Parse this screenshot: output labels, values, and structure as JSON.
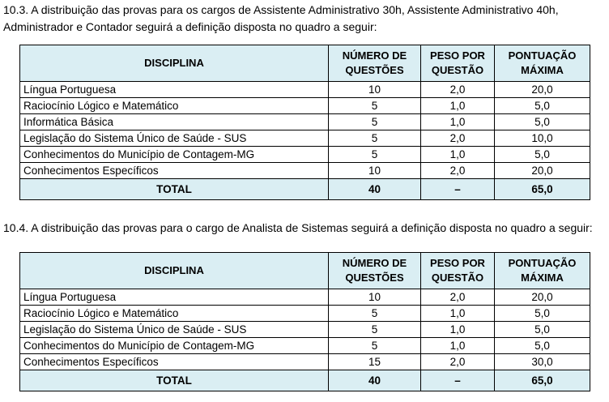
{
  "section1": {
    "text": "10.3. A distribuição das provas para os cargos de Assistente Administrativo 30h, Assistente Administrativo 40h, Administrador e Contador seguirá a definição disposta no quadro a seguir:",
    "headers": [
      "DISCIPLINA",
      "NÚMERO DE QUESTÕES",
      "PESO POR QUESTÃO",
      "PONTUAÇÃO MÁXIMA"
    ],
    "rows": [
      [
        "Língua Portuguesa",
        "10",
        "2,0",
        "20,0"
      ],
      [
        "Raciocínio Lógico e Matemático",
        "5",
        "1,0",
        "5,0"
      ],
      [
        "Informática Básica",
        "5",
        "1,0",
        "5,0"
      ],
      [
        "Legislação do Sistema Único de Saúde - SUS",
        "5",
        "2,0",
        "10,0"
      ],
      [
        "Conhecimentos do Município de Contagem-MG",
        "5",
        "1,0",
        "5,0"
      ],
      [
        "Conhecimentos Específicos",
        "10",
        "2,0",
        "20,0"
      ]
    ],
    "total": [
      "TOTAL",
      "40",
      "–",
      "65,0"
    ]
  },
  "section2": {
    "text": "10.4. A distribuição das provas para o cargo de Analista de Sistemas seguirá a definição disposta no quadro a seguir:",
    "headers": [
      "DISCIPLINA",
      "NÚMERO DE QUESTÕES",
      "PESO POR QUESTÃO",
      "PONTUAÇÃO MÁXIMA"
    ],
    "rows": [
      [
        "Língua Portuguesa",
        "10",
        "2,0",
        "20,0"
      ],
      [
        "Raciocínio Lógico e Matemático",
        "5",
        "1,0",
        "5,0"
      ],
      [
        "Legislação do Sistema Único de Saúde - SUS",
        "5",
        "1,0",
        "5,0"
      ],
      [
        "Conhecimentos do Município de Contagem-MG",
        "5",
        "1,0",
        "5,0"
      ],
      [
        "Conhecimentos Específicos",
        "15",
        "2,0",
        "30,0"
      ]
    ],
    "total": [
      "TOTAL",
      "40",
      "–",
      "65,0"
    ]
  },
  "colors": {
    "header_bg": "#DAEEF3"
  }
}
